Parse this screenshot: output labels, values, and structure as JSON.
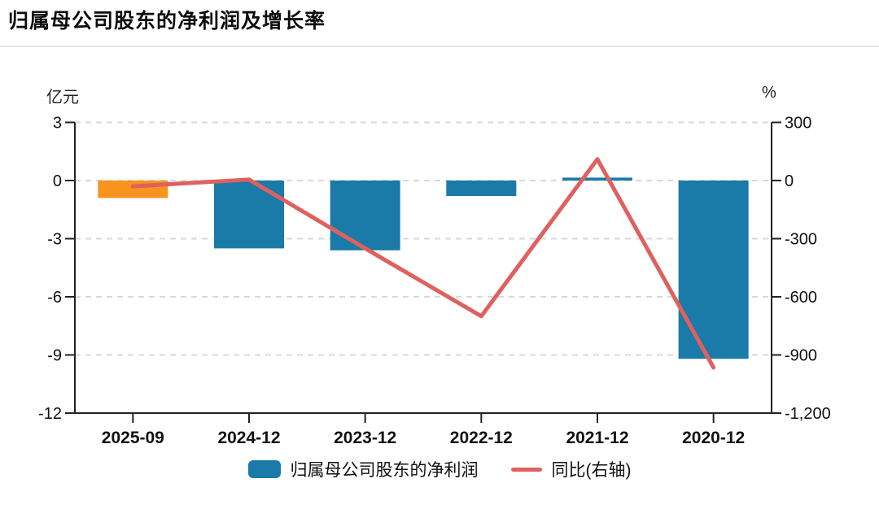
{
  "title": "归属母公司股东的净利润及增长率",
  "legend": {
    "bar_label": "归属母公司股东的净利润",
    "line_label": "同比(右轴)"
  },
  "colors": {
    "bar_default": "#1A7AA8",
    "bar_current_period": "#F7941E",
    "line": "#E06060",
    "grid": "#d9d9d9",
    "axis": "#222222",
    "text": "#111111"
  },
  "chart_data": {
    "type": "bar",
    "subtype": "bar+line dual axis",
    "categories": [
      "2025-09",
      "2024-12",
      "2023-12",
      "2022-12",
      "2021-12",
      "2020-12"
    ],
    "series": [
      {
        "name": "归属母公司股东的净利润",
        "type": "bar",
        "axis": "left",
        "unit": "亿元",
        "values": [
          -0.9,
          -3.5,
          -3.6,
          -0.8,
          0.15,
          -9.2
        ],
        "point_colors": [
          "#F7941E",
          "#1A7AA8",
          "#1A7AA8",
          "#1A7AA8",
          "#1A7AA8",
          "#1A7AA8"
        ]
      },
      {
        "name": "同比(右轴)",
        "type": "line",
        "axis": "right",
        "unit": "%",
        "values": [
          -30,
          5,
          -350,
          -700,
          110,
          -965
        ],
        "color": "#E06060"
      }
    ],
    "left_axis": {
      "unit": "亿元",
      "range": [
        -12,
        3
      ],
      "ticks": [
        3,
        0,
        -3,
        -6,
        -9,
        -12
      ],
      "tick_labels": [
        "3",
        "0",
        "-3",
        "-6",
        "-9",
        "-12"
      ]
    },
    "right_axis": {
      "unit": "%",
      "range": [
        -1200,
        300
      ],
      "ticks": [
        300,
        0,
        -300,
        -600,
        -900,
        -1200
      ],
      "tick_labels": [
        "300",
        "0",
        "-300",
        "-600",
        "-900",
        "-1,200"
      ]
    },
    "title": "归属母公司股东的净利润及增长率",
    "grid": "horizontal dashed",
    "legend_position": "bottom center"
  }
}
